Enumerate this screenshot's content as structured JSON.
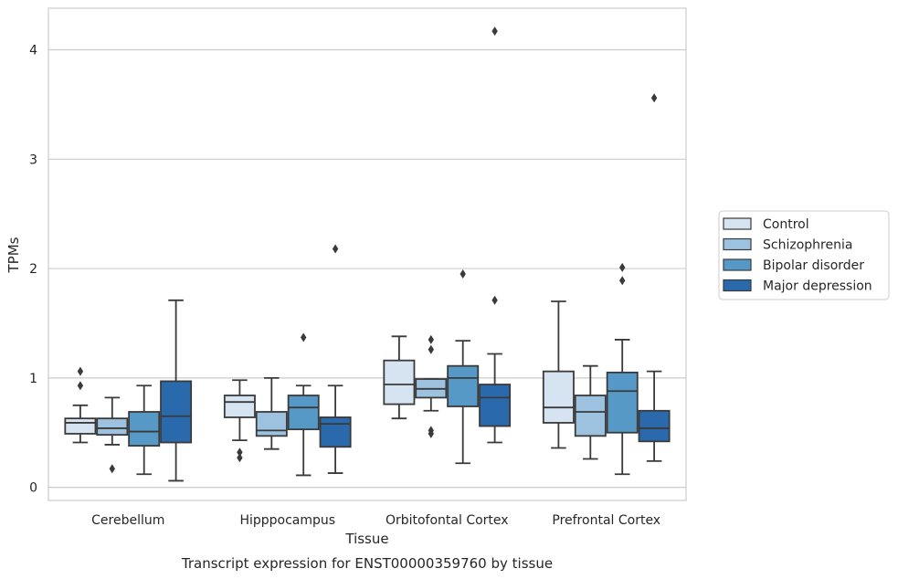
{
  "chart_data": {
    "type": "box",
    "xlabel": "Tissue",
    "ylabel": "TPMs",
    "caption": "Transcript expression for ENST00000359760 by tissue",
    "categories": [
      "Cerebellum",
      "Hipppocampus",
      "Orbitofontal Cortex",
      "Prefrontal Cortex"
    ],
    "ylim": [
      -0.12,
      4.38
    ],
    "yticks": [
      0,
      1,
      2,
      3,
      4
    ],
    "grid": true,
    "legend_position": "right",
    "series": [
      {
        "name": "Control",
        "color": "#d6e4f1",
        "boxes": [
          {
            "whislo": 0.41,
            "q1": 0.49,
            "med": 0.59,
            "q3": 0.63,
            "whishi": 0.75,
            "fliers": [
              0.93,
              1.06
            ]
          },
          {
            "whislo": 0.43,
            "q1": 0.64,
            "med": 0.78,
            "q3": 0.84,
            "whishi": 0.98,
            "fliers": [
              0.27,
              0.32
            ]
          },
          {
            "whislo": 0.63,
            "q1": 0.76,
            "med": 0.94,
            "q3": 1.16,
            "whishi": 1.38,
            "fliers": []
          },
          {
            "whislo": 0.36,
            "q1": 0.59,
            "med": 0.73,
            "q3": 1.06,
            "whishi": 1.7,
            "fliers": []
          }
        ]
      },
      {
        "name": "Schizophrenia",
        "color": "#9cc2df",
        "boxes": [
          {
            "whislo": 0.39,
            "q1": 0.48,
            "med": 0.54,
            "q3": 0.63,
            "whishi": 0.82,
            "fliers": [
              0.17
            ]
          },
          {
            "whislo": 0.35,
            "q1": 0.47,
            "med": 0.52,
            "q3": 0.69,
            "whishi": 1.0,
            "fliers": []
          },
          {
            "whislo": 0.7,
            "q1": 0.82,
            "med": 0.9,
            "q3": 0.99,
            "whishi": 0.99,
            "fliers": [
              0.49,
              0.52,
              1.26,
              1.35
            ]
          },
          {
            "whislo": 0.26,
            "q1": 0.47,
            "med": 0.69,
            "q3": 0.84,
            "whishi": 1.11,
            "fliers": []
          }
        ]
      },
      {
        "name": "Bipolar disorder",
        "color": "#5799c6",
        "boxes": [
          {
            "whislo": 0.12,
            "q1": 0.38,
            "med": 0.51,
            "q3": 0.69,
            "whishi": 0.93,
            "fliers": []
          },
          {
            "whislo": 0.11,
            "q1": 0.53,
            "med": 0.73,
            "q3": 0.84,
            "whishi": 0.93,
            "fliers": [
              1.37
            ]
          },
          {
            "whislo": 0.22,
            "q1": 0.74,
            "med": 1.0,
            "q3": 1.11,
            "whishi": 1.34,
            "fliers": [
              1.95
            ]
          },
          {
            "whislo": 0.12,
            "q1": 0.5,
            "med": 0.88,
            "q3": 1.05,
            "whishi": 1.35,
            "fliers": [
              1.89,
              2.01
            ]
          }
        ]
      },
      {
        "name": "Major depression",
        "color": "#2a6aac",
        "boxes": [
          {
            "whislo": 0.06,
            "q1": 0.41,
            "med": 0.65,
            "q3": 0.97,
            "whishi": 1.71,
            "fliers": []
          },
          {
            "whislo": 0.13,
            "q1": 0.37,
            "med": 0.58,
            "q3": 0.64,
            "whishi": 0.93,
            "fliers": [
              2.18
            ]
          },
          {
            "whislo": 0.41,
            "q1": 0.56,
            "med": 0.82,
            "q3": 0.94,
            "whishi": 1.22,
            "fliers": [
              1.71,
              4.17
            ]
          },
          {
            "whislo": 0.24,
            "q1": 0.42,
            "med": 0.54,
            "q3": 0.7,
            "whishi": 1.06,
            "fliers": [
              3.56
            ]
          }
        ]
      }
    ]
  }
}
